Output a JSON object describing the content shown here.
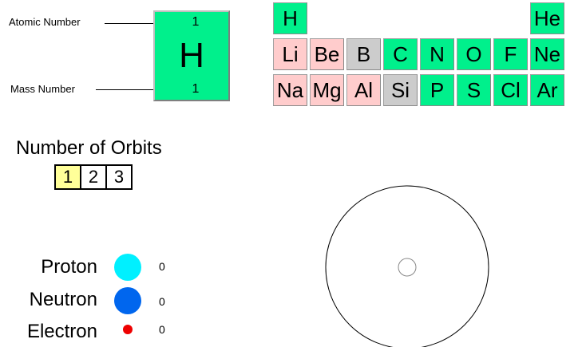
{
  "key": {
    "atomic_number_label": "Atomic Number",
    "mass_number_label": "Mass Number",
    "atomic_number": "1",
    "symbol": "H",
    "mass_number": "1",
    "color": "#00f08c"
  },
  "periodic_table": {
    "colors": {
      "green": "#00f08c",
      "pink": "#ffcccc",
      "gray": "#cccccc"
    },
    "rows": [
      [
        {
          "symbol": "H",
          "color": "green"
        },
        null,
        null,
        null,
        null,
        null,
        null,
        {
          "symbol": "He",
          "color": "green"
        }
      ],
      [
        {
          "symbol": "Li",
          "color": "pink"
        },
        {
          "symbol": "Be",
          "color": "pink"
        },
        {
          "symbol": "B",
          "color": "gray"
        },
        {
          "symbol": "C",
          "color": "green"
        },
        {
          "symbol": "N",
          "color": "green"
        },
        {
          "symbol": "O",
          "color": "green"
        },
        {
          "symbol": "F",
          "color": "green"
        },
        {
          "symbol": "Ne",
          "color": "green"
        }
      ],
      [
        {
          "symbol": "Na",
          "color": "pink"
        },
        {
          "symbol": "Mg",
          "color": "pink"
        },
        {
          "symbol": "Al",
          "color": "pink"
        },
        {
          "symbol": "Si",
          "color": "gray"
        },
        {
          "symbol": "P",
          "color": "green"
        },
        {
          "symbol": "S",
          "color": "green"
        },
        {
          "symbol": "Cl",
          "color": "green"
        },
        {
          "symbol": "Ar",
          "color": "green"
        }
      ]
    ]
  },
  "orbits": {
    "title": "Number of Orbits",
    "options": [
      "1",
      "2",
      "3"
    ],
    "selected": "1"
  },
  "particles": [
    {
      "label": "Proton",
      "count": "0",
      "color": "#00f0ff",
      "icon": "proton-icon"
    },
    {
      "label": "Neutron",
      "count": "0",
      "color": "#0066ee",
      "icon": "neutron-icon"
    },
    {
      "label": "Electron",
      "count": "0",
      "color": "#ee0000",
      "icon": "electron-icon"
    }
  ]
}
